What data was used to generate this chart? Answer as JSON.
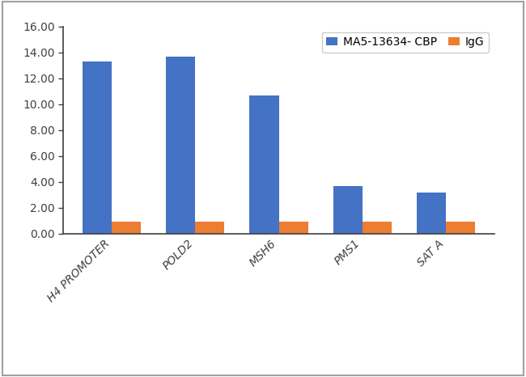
{
  "categories": [
    "H4 PROMOTER",
    "POLD2",
    "MSH6",
    "PMS1",
    "SAT A"
  ],
  "series": [
    {
      "name": "MA5-13634- CBP",
      "values": [
        13.3,
        13.65,
        10.65,
        3.65,
        3.15
      ],
      "color": "#4472C4"
    },
    {
      "name": "IgG",
      "values": [
        0.95,
        0.95,
        0.95,
        0.95,
        0.95
      ],
      "color": "#ED7D31"
    }
  ],
  "ylim": [
    0,
    16.0
  ],
  "yticks": [
    0.0,
    2.0,
    4.0,
    6.0,
    8.0,
    10.0,
    12.0,
    14.0,
    16.0
  ],
  "bar_width": 0.35,
  "legend_loc": "upper right",
  "background_color": "#ffffff",
  "tick_label_fontsize": 10,
  "legend_fontsize": 10,
  "axis_color": "#404040",
  "outer_border_color": "#a0a0a0"
}
